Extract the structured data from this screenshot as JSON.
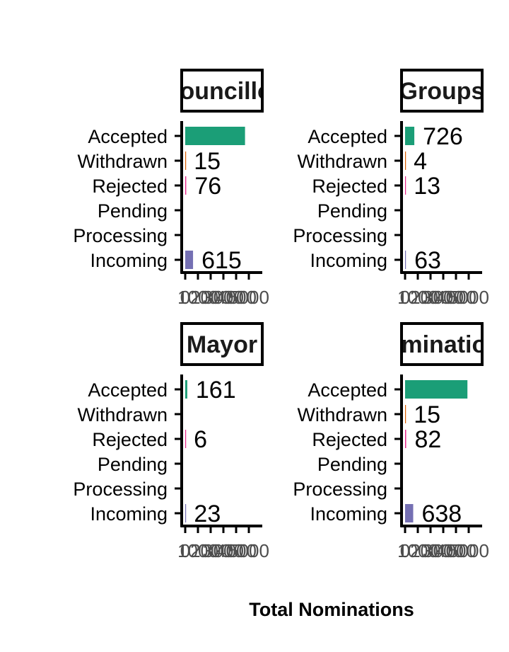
{
  "chart_data": {
    "type": "bar",
    "orientation": "horizontal",
    "xlabel": "Total Nominations",
    "categories": [
      "Accepted",
      "Withdrawn",
      "Rejected",
      "Pending",
      "Processing",
      "Incoming"
    ],
    "category_colors": [
      "#1b9e77",
      "#d95f02",
      "#e7298a",
      "#66a61e",
      "#e6ab02",
      "#7570b3"
    ],
    "xlim": [
      0,
      5500
    ],
    "x_ticks": [
      "0",
      "1000",
      "2000",
      "3000",
      "4000",
      "5000"
    ],
    "panels": [
      {
        "title": "Councillor",
        "values": [
          4700,
          15,
          76,
          0,
          0,
          615
        ],
        "labels": [
          "",
          "15",
          "76",
          "",
          "",
          "615"
        ]
      },
      {
        "title": "Groups",
        "values": [
          726,
          4,
          13,
          0,
          0,
          63
        ],
        "labels": [
          "726",
          "4",
          "13",
          "",
          "",
          "63"
        ]
      },
      {
        "title": "Mayor",
        "values": [
          161,
          0,
          6,
          0,
          0,
          23
        ],
        "labels": [
          "161",
          "",
          "6",
          "",
          "",
          "23"
        ]
      },
      {
        "title": "Nominations",
        "values": [
          4900,
          15,
          82,
          0,
          0,
          638
        ],
        "labels": [
          "",
          "15",
          "82",
          "",
          "",
          "638"
        ]
      }
    ]
  }
}
